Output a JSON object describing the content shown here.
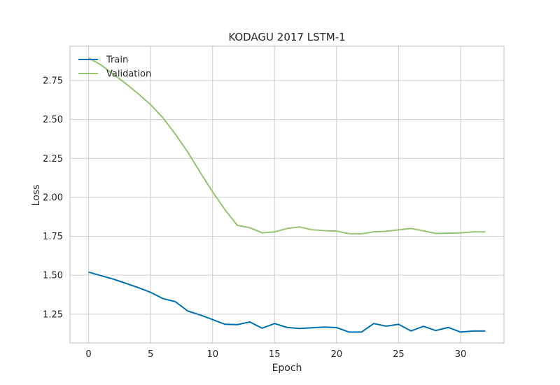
{
  "chart_data": {
    "type": "line",
    "title": "KODAGU 2017 LSTM-1",
    "xlabel": "Epoch",
    "ylabel": "Loss",
    "xlim": [
      -1.5,
      33.5
    ],
    "ylim": [
      1.065,
      2.97
    ],
    "xticks": [
      0,
      5,
      10,
      15,
      20,
      25,
      30
    ],
    "yticks": [
      1.25,
      1.5,
      1.75,
      2.0,
      2.25,
      2.5,
      2.75
    ],
    "ytick_labels": [
      "1.25",
      "1.50",
      "1.75",
      "2.00",
      "2.25",
      "2.50",
      "2.75"
    ],
    "grid": true,
    "legend": "upper-left",
    "x": [
      0,
      1,
      2,
      3,
      4,
      5,
      6,
      7,
      8,
      9,
      10,
      11,
      12,
      13,
      14,
      15,
      16,
      17,
      18,
      19,
      20,
      21,
      22,
      23,
      24,
      25,
      26,
      27,
      28,
      29,
      30,
      31,
      32
    ],
    "series": [
      {
        "name": "Train",
        "color": "#0072B2",
        "values": [
          1.52,
          1.497,
          1.475,
          1.448,
          1.421,
          1.39,
          1.35,
          1.33,
          1.27,
          1.245,
          1.215,
          1.185,
          1.183,
          1.2,
          1.16,
          1.19,
          1.165,
          1.158,
          1.163,
          1.167,
          1.164,
          1.135,
          1.135,
          1.19,
          1.173,
          1.185,
          1.142,
          1.172,
          1.145,
          1.165,
          1.135,
          1.142,
          1.142
        ]
      },
      {
        "name": "Validation",
        "color": "#95C36E",
        "values": [
          2.895,
          2.85,
          2.79,
          2.73,
          2.665,
          2.595,
          2.51,
          2.405,
          2.29,
          2.16,
          2.035,
          1.92,
          1.82,
          1.805,
          1.772,
          1.778,
          1.8,
          1.81,
          1.792,
          1.786,
          1.783,
          1.767,
          1.766,
          1.778,
          1.782,
          1.791,
          1.8,
          1.785,
          1.768,
          1.77,
          1.772,
          1.778,
          1.778
        ]
      }
    ]
  }
}
